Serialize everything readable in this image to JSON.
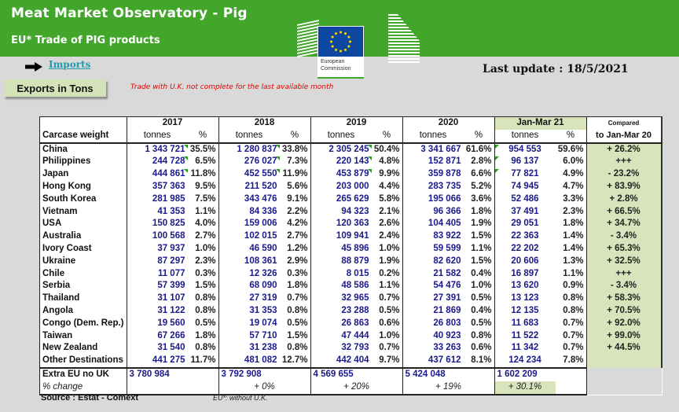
{
  "header": {
    "title": "Meat Market Observatory - Pig",
    "subtitle": "EU* Trade of PIG products",
    "logo_text_1": "European",
    "logo_text_2": "Commission"
  },
  "nav": {
    "arrow_icon": "right-arrow-icon",
    "imports_link": "Imports",
    "exports_button": "Exports in Tons",
    "uk_note": "Trade with U.K. not complete for the last available month",
    "last_update": "Last update : 18/5/2021"
  },
  "colors": {
    "banner_green": "#41a62a",
    "highlight_green": "#d8e4bc",
    "number_blue": "#1a1a8c",
    "note_red": "#e00000",
    "link_teal": "#1f9bb0"
  },
  "table": {
    "row_label_header": "Carcase weight",
    "years": [
      "2017",
      "2018",
      "2019",
      "2020",
      "Jan-Mar 21"
    ],
    "sub_tonnes": "tonnes",
    "sub_pct": "%",
    "compared_h1": "Compared",
    "compared_h2": "to Jan-Mar 20",
    "rows": [
      {
        "country": "China",
        "v2017": "1 343 721",
        "p2017": "35.5%",
        "v2018": "1 280 837",
        "p2018": "33.8%",
        "v2019": "2 305 245",
        "p2019": "50.4%",
        "v2020": "3 341 667",
        "p2020": "61.6%",
        "v21": "954 553",
        "p21": "59.6%",
        "cmp": "+ 26.2%"
      },
      {
        "country": "Philippines",
        "v2017": "244 728",
        "p2017": "6.5%",
        "v2018": "276 027",
        "p2018": "7.3%",
        "v2019": "220 143",
        "p2019": "4.8%",
        "v2020": "152 871",
        "p2020": "2.8%",
        "v21": "96 137",
        "p21": "6.0%",
        "cmp": "+++"
      },
      {
        "country": "Japan",
        "v2017": "444 861",
        "p2017": "11.8%",
        "v2018": "452 550",
        "p2018": "11.9%",
        "v2019": "453 879",
        "p2019": "9.9%",
        "v2020": "359 878",
        "p2020": "6.6%",
        "v21": "77 821",
        "p21": "4.9%",
        "cmp": "- 23.2%"
      },
      {
        "country": "Hong Kong",
        "v2017": "357 363",
        "p2017": "9.5%",
        "v2018": "211 520",
        "p2018": "5.6%",
        "v2019": "203 000",
        "p2019": "4.4%",
        "v2020": "283 735",
        "p2020": "5.2%",
        "v21": "74 945",
        "p21": "4.7%",
        "cmp": "+ 83.9%"
      },
      {
        "country": "South Korea",
        "v2017": "281 985",
        "p2017": "7.5%",
        "v2018": "343 476",
        "p2018": "9.1%",
        "v2019": "265 629",
        "p2019": "5.8%",
        "v2020": "195 066",
        "p2020": "3.6%",
        "v21": "52 486",
        "p21": "3.3%",
        "cmp": "+ 2.8%"
      },
      {
        "country": "Vietnam",
        "v2017": "41 353",
        "p2017": "1.1%",
        "v2018": "84 336",
        "p2018": "2.2%",
        "v2019": "94 323",
        "p2019": "2.1%",
        "v2020": "96 366",
        "p2020": "1.8%",
        "v21": "37 491",
        "p21": "2.3%",
        "cmp": "+ 66.5%"
      },
      {
        "country": "USA",
        "v2017": "150 825",
        "p2017": "4.0%",
        "v2018": "159 006",
        "p2018": "4.2%",
        "v2019": "120 363",
        "p2019": "2.6%",
        "v2020": "104 405",
        "p2020": "1.9%",
        "v21": "29 051",
        "p21": "1.8%",
        "cmp": "+ 34.7%"
      },
      {
        "country": "Australia",
        "v2017": "100 568",
        "p2017": "2.7%",
        "v2018": "102 015",
        "p2018": "2.7%",
        "v2019": "109 941",
        "p2019": "2.4%",
        "v2020": "83 922",
        "p2020": "1.5%",
        "v21": "22 363",
        "p21": "1.4%",
        "cmp": "- 3.4%"
      },
      {
        "country": "Ivory Coast",
        "v2017": "37 937",
        "p2017": "1.0%",
        "v2018": "46 590",
        "p2018": "1.2%",
        "v2019": "45 896",
        "p2019": "1.0%",
        "v2020": "59 599",
        "p2020": "1.1%",
        "v21": "22 202",
        "p21": "1.4%",
        "cmp": "+ 65.3%"
      },
      {
        "country": "Ukraine",
        "v2017": "87 297",
        "p2017": "2.3%",
        "v2018": "108 361",
        "p2018": "2.9%",
        "v2019": "88 879",
        "p2019": "1.9%",
        "v2020": "82 620",
        "p2020": "1.5%",
        "v21": "20 606",
        "p21": "1.3%",
        "cmp": "+ 32.5%"
      },
      {
        "country": "Chile",
        "v2017": "11 077",
        "p2017": "0.3%",
        "v2018": "12 326",
        "p2018": "0.3%",
        "v2019": "8 015",
        "p2019": "0.2%",
        "v2020": "21 582",
        "p2020": "0.4%",
        "v21": "16 897",
        "p21": "1.1%",
        "cmp": "+++"
      },
      {
        "country": "Serbia",
        "v2017": "57 399",
        "p2017": "1.5%",
        "v2018": "68 090",
        "p2018": "1.8%",
        "v2019": "48 586",
        "p2019": "1.1%",
        "v2020": "54 476",
        "p2020": "1.0%",
        "v21": "13 620",
        "p21": "0.9%",
        "cmp": "- 3.4%"
      },
      {
        "country": "Thailand",
        "v2017": "31 107",
        "p2017": "0.8%",
        "v2018": "27 319",
        "p2018": "0.7%",
        "v2019": "32 965",
        "p2019": "0.7%",
        "v2020": "27 391",
        "p2020": "0.5%",
        "v21": "13 123",
        "p21": "0.8%",
        "cmp": "+ 58.3%"
      },
      {
        "country": "Angola",
        "v2017": "31 122",
        "p2017": "0.8%",
        "v2018": "31 353",
        "p2018": "0.8%",
        "v2019": "23 288",
        "p2019": "0.5%",
        "v2020": "21 869",
        "p2020": "0.4%",
        "v21": "12 135",
        "p21": "0.8%",
        "cmp": "+ 70.5%"
      },
      {
        "country": "Congo (Dem. Rep.)",
        "v2017": "19 560",
        "p2017": "0.5%",
        "v2018": "19 074",
        "p2018": "0.5%",
        "v2019": "26 863",
        "p2019": "0.6%",
        "v2020": "26 803",
        "p2020": "0.5%",
        "v21": "11 683",
        "p21": "0.7%",
        "cmp": "+ 92.0%"
      },
      {
        "country": "Taiwan",
        "v2017": "67 266",
        "p2017": "1.8%",
        "v2018": "57 710",
        "p2018": "1.5%",
        "v2019": "47 444",
        "p2019": "1.0%",
        "v2020": "40 923",
        "p2020": "0.8%",
        "v21": "11 522",
        "p21": "0.7%",
        "cmp": "+ 99.0%"
      },
      {
        "country": "New Zealand",
        "v2017": "31 540",
        "p2017": "0.8%",
        "v2018": "31 238",
        "p2018": "0.8%",
        "v2019": "32 793",
        "p2019": "0.7%",
        "v2020": "33 263",
        "p2020": "0.6%",
        "v21": "11 342",
        "p21": "0.7%",
        "cmp": "+ 44.5%"
      },
      {
        "country": "Other Destinations",
        "v2017": "441 275",
        "p2017": "11.7%",
        "v2018": "481 082",
        "p2018": "12.7%",
        "v2019": "442 404",
        "p2019": "9.7%",
        "v2020": "437 612",
        "p2020": "8.1%",
        "v21": "124 234",
        "p21": "7.8%",
        "cmp": ""
      }
    ],
    "total": {
      "label": "Extra EU no UK",
      "v2017": "3 780 984",
      "v2018": "3 792 908",
      "v2019": "4 569 655",
      "v2020": "5 424 048",
      "v21": "1 602 209"
    },
    "change": {
      "label": "% change",
      "c2017": "",
      "c2018": "+ 0%",
      "c2019": "+ 20%",
      "c2020": "+ 19%",
      "c21": "+ 30.1%"
    }
  },
  "footer": {
    "source": "Source : Estat - Comext",
    "eu_note": "EU*: without U.K."
  }
}
